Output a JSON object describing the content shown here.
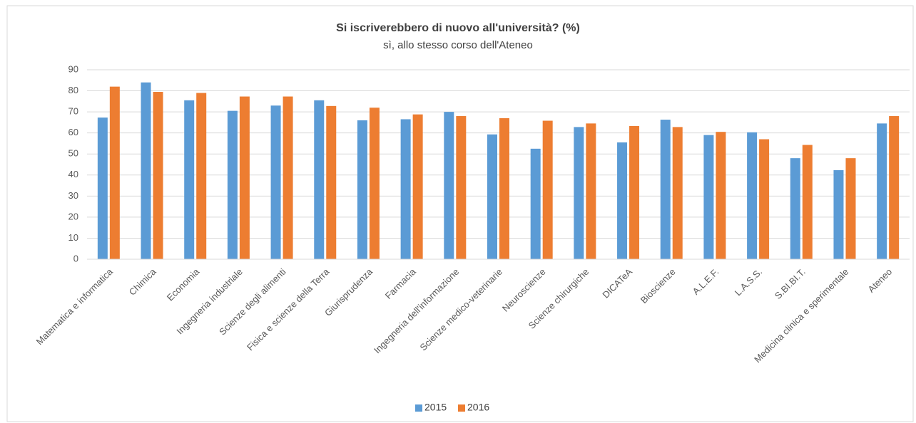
{
  "chart_data": {
    "type": "bar",
    "title": "Si iscriverebbero di nuovo all'università? (%)",
    "subtitle": "sì, allo stesso corso dell'Ateneo",
    "categories": [
      "Matematica e informatica",
      "Chimica",
      "Economia",
      "Ingegneria industriale",
      "Scienze degli alimenti",
      "Fisica e scienze della Terra",
      "Giurisprudenza",
      "Farmacia",
      "Ingegneria dell'informazione",
      "Scienze medico-veterinarie",
      "Neuroscienze",
      "Scienze chirurgiche",
      "DICATeA",
      "Bioscienze",
      "A.L.E.F.",
      "L.A.S.S.",
      "S.BI.BI.T.",
      "Medicina clinica e sperimentale",
      "Ateneo"
    ],
    "series": [
      {
        "name": "2015",
        "color": "#5b9bd5",
        "values": [
          67.3,
          84,
          75.5,
          70.5,
          73,
          75.5,
          66,
          66.5,
          70,
          59.3,
          52.5,
          62.8,
          55.5,
          66.3,
          59,
          60.3,
          48,
          42.3,
          64.5
        ]
      },
      {
        "name": "2016",
        "color": "#ed7d31",
        "values": [
          82,
          79.5,
          79,
          77.3,
          77.3,
          72.8,
          72,
          68.8,
          68,
          67,
          65.8,
          64.5,
          63.3,
          62.8,
          60.5,
          57,
          54.3,
          48,
          68
        ]
      }
    ],
    "ylim": [
      0,
      90
    ],
    "yticks": [
      0,
      10,
      20,
      30,
      40,
      50,
      60,
      70,
      80,
      90
    ],
    "grid": true,
    "legend": "bottom"
  }
}
